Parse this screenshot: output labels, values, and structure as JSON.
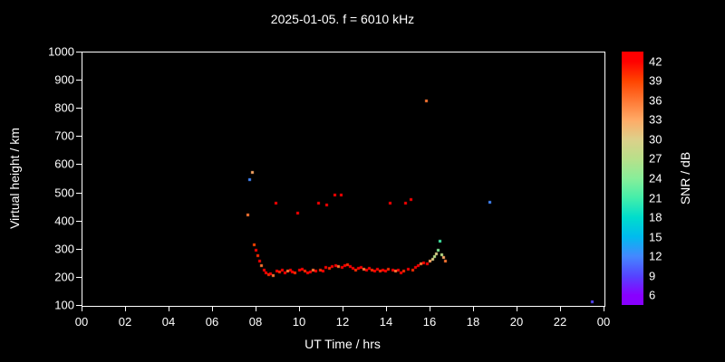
{
  "title": "2025-01-05. f = 6010 kHz",
  "axes": {
    "x": {
      "label": "UT Time / hrs",
      "min": 0,
      "max": 24,
      "tick_values": [
        0,
        2,
        4,
        6,
        8,
        10,
        12,
        14,
        16,
        18,
        20,
        22,
        24
      ],
      "tick_labels": [
        "00",
        "02",
        "04",
        "06",
        "08",
        "10",
        "12",
        "14",
        "16",
        "18",
        "20",
        "22",
        "00"
      ]
    },
    "y": {
      "label": "Virtual height / km",
      "min": 100,
      "max": 1000,
      "tick_values": [
        100,
        200,
        300,
        400,
        500,
        600,
        700,
        800,
        900,
        1000
      ]
    }
  },
  "colorbar": {
    "label": "SNR / dB",
    "min": 4.5,
    "max": 43.5,
    "tick_values": [
      42,
      39,
      36,
      33,
      30,
      27,
      24,
      21,
      18,
      15,
      12,
      9,
      6
    ],
    "stops": [
      {
        "v": 42,
        "c": "#ff0000"
      },
      {
        "v": 39,
        "c": "#ff4400"
      },
      {
        "v": 36,
        "c": "#ff7733"
      },
      {
        "v": 33,
        "c": "#ffaa66"
      },
      {
        "v": 30,
        "c": "#ddd08a"
      },
      {
        "v": 27,
        "c": "#b8e08a"
      },
      {
        "v": 24,
        "c": "#88ee99"
      },
      {
        "v": 21,
        "c": "#44eeaa"
      },
      {
        "v": 18,
        "c": "#00ddcc"
      },
      {
        "v": 15,
        "c": "#00bbee"
      },
      {
        "v": 12,
        "c": "#4488ff"
      },
      {
        "v": 9,
        "c": "#5544ff"
      },
      {
        "v": 6,
        "c": "#8800ff"
      }
    ]
  },
  "chart_data": {
    "type": "scatter",
    "title": "2025-01-05. f = 6010 kHz",
    "xlabel": "UT Time / hrs",
    "ylabel": "Virtual height / km",
    "colorbar_label": "SNR / dB",
    "xlim": [
      0,
      24
    ],
    "ylim": [
      100,
      1000
    ],
    "snr_range": [
      6,
      42
    ],
    "grid": false,
    "points": [
      [
        7.58,
        425,
        36
      ],
      [
        7.67,
        550,
        12
      ],
      [
        7.79,
        575,
        33
      ],
      [
        7.88,
        320,
        39
      ],
      [
        7.96,
        300,
        42
      ],
      [
        8.04,
        280,
        40
      ],
      [
        8.13,
        260,
        42
      ],
      [
        8.21,
        245,
        36
      ],
      [
        8.33,
        230,
        42
      ],
      [
        8.42,
        220,
        42
      ],
      [
        8.54,
        212,
        40
      ],
      [
        8.63,
        215,
        42
      ],
      [
        8.75,
        210,
        36
      ],
      [
        8.88,
        465,
        42
      ],
      [
        8.92,
        225,
        42
      ],
      [
        9.04,
        222,
        40
      ],
      [
        9.17,
        228,
        42
      ],
      [
        9.29,
        218,
        42
      ],
      [
        9.42,
        225,
        36
      ],
      [
        9.54,
        230,
        42
      ],
      [
        9.63,
        222,
        42
      ],
      [
        9.75,
        218,
        40
      ],
      [
        9.88,
        430,
        42
      ],
      [
        9.96,
        228,
        42
      ],
      [
        10.08,
        232,
        42
      ],
      [
        10.21,
        224,
        40
      ],
      [
        10.33,
        218,
        42
      ],
      [
        10.46,
        222,
        42
      ],
      [
        10.58,
        230,
        36
      ],
      [
        10.71,
        226,
        42
      ],
      [
        10.83,
        465,
        42
      ],
      [
        10.92,
        230,
        40
      ],
      [
        11.04,
        226,
        42
      ],
      [
        11.17,
        238,
        42
      ],
      [
        11.21,
        460,
        42
      ],
      [
        11.33,
        234,
        40
      ],
      [
        11.46,
        242,
        42
      ],
      [
        11.58,
        495,
        42
      ],
      [
        11.63,
        246,
        42
      ],
      [
        11.75,
        240,
        36
      ],
      [
        11.88,
        495,
        42
      ],
      [
        11.92,
        238,
        42
      ],
      [
        12.04,
        244,
        42
      ],
      [
        12.17,
        248,
        40
      ],
      [
        12.29,
        242,
        42
      ],
      [
        12.42,
        236,
        42
      ],
      [
        12.54,
        230,
        40
      ],
      [
        12.67,
        234,
        42
      ],
      [
        12.79,
        238,
        42
      ],
      [
        12.92,
        232,
        36
      ],
      [
        13.04,
        228,
        42
      ],
      [
        13.17,
        234,
        42
      ],
      [
        13.29,
        230,
        40
      ],
      [
        13.42,
        226,
        42
      ],
      [
        13.54,
        232,
        42
      ],
      [
        13.67,
        226,
        40
      ],
      [
        13.79,
        230,
        42
      ],
      [
        13.92,
        226,
        42
      ],
      [
        14.04,
        232,
        40
      ],
      [
        14.13,
        465,
        42
      ],
      [
        14.25,
        228,
        42
      ],
      [
        14.38,
        224,
        36
      ],
      [
        14.5,
        228,
        42
      ],
      [
        14.63,
        220,
        42
      ],
      [
        14.75,
        226,
        40
      ],
      [
        14.83,
        465,
        42
      ],
      [
        14.96,
        232,
        42
      ],
      [
        15.08,
        480,
        42
      ],
      [
        15.17,
        230,
        40
      ],
      [
        15.29,
        238,
        42
      ],
      [
        15.42,
        244,
        42
      ],
      [
        15.54,
        250,
        36
      ],
      [
        15.67,
        254,
        42
      ],
      [
        15.79,
        830,
        36
      ],
      [
        15.83,
        252,
        42
      ],
      [
        15.96,
        260,
        33
      ],
      [
        16.08,
        268,
        30
      ],
      [
        16.17,
        278,
        27
      ],
      [
        16.25,
        288,
        30
      ],
      [
        16.33,
        298,
        24
      ],
      [
        16.42,
        330,
        21
      ],
      [
        16.5,
        282,
        27
      ],
      [
        16.58,
        272,
        33
      ],
      [
        16.67,
        262,
        36
      ],
      [
        18.71,
        470,
        12
      ],
      [
        23.42,
        115,
        9
      ]
    ]
  }
}
